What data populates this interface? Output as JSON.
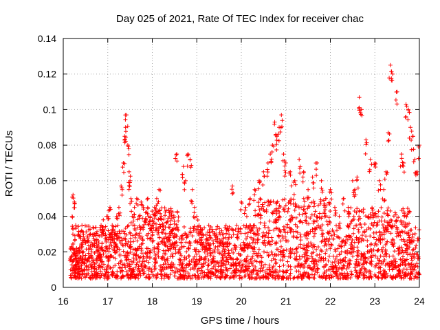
{
  "chart_data": {
    "type": "scatter",
    "title": "Day 025 of 2021, Rate Of TEC Index for receiver chac",
    "xlabel": "GPS time / hours",
    "ylabel": "ROTI / TECUs",
    "xlim": [
      16,
      24
    ],
    "ylim": [
      0,
      0.14
    ],
    "xticks": [
      "16",
      "17",
      "18",
      "19",
      "20",
      "21",
      "22",
      "23",
      "24"
    ],
    "yticks": [
      "0",
      "0.02",
      "0.04",
      "0.06",
      "0.08",
      "0.1",
      "0.12",
      "0.14"
    ],
    "grid": true,
    "marker": "plus",
    "marker_color": "#ff0000",
    "series": [
      {
        "x": [
          16.2,
          16.22,
          16.25,
          16.28,
          16.3,
          16.22,
          16.25,
          16.28,
          16.3,
          16.35,
          16.4,
          16.45,
          16.5,
          16.55,
          16.6,
          16.65,
          16.7,
          16.75,
          16.8,
          16.85,
          16.9,
          16.95,
          17.0,
          17.05,
          17.1,
          17.15,
          17.2,
          17.25,
          17.3,
          17.35,
          17.38,
          17.4,
          17.42,
          17.45,
          17.48,
          17.5,
          17.52,
          17.55,
          17.6,
          17.65,
          17.7,
          17.75,
          17.8,
          17.85,
          17.9,
          17.95,
          18.0,
          18.05,
          18.1,
          18.15,
          18.2,
          18.25,
          18.3,
          18.35,
          18.4,
          18.45,
          18.5,
          18.55,
          18.6,
          18.7,
          18.75,
          18.8,
          18.85,
          18.9,
          18.95,
          19.0,
          19.05,
          19.1,
          19.15,
          19.2,
          19.3,
          19.4,
          19.5,
          19.6,
          19.7,
          19.8,
          19.9,
          20.0,
          20.1,
          20.2,
          20.3,
          20.4,
          20.5,
          20.6,
          20.65,
          20.7,
          20.75,
          20.8,
          20.85,
          20.9,
          20.95,
          21.0,
          21.1,
          21.2,
          21.3,
          21.4,
          21.5,
          21.6,
          21.7,
          21.8,
          21.9,
          22.0,
          22.1,
          22.2,
          22.3,
          22.4,
          22.5,
          22.55,
          22.6,
          22.65,
          22.7,
          22.8,
          22.9,
          23.0,
          23.1,
          23.2,
          23.25,
          23.3,
          23.35,
          23.4,
          23.5,
          23.6,
          23.65,
          23.7,
          23.75,
          23.8,
          23.85,
          23.9,
          23.95,
          24.0
        ],
        "y": [
          0.04,
          0.052,
          0.048,
          0.035,
          0.02,
          0.015,
          0.012,
          0.018,
          0.022,
          0.016,
          0.014,
          0.02,
          0.018,
          0.015,
          0.022,
          0.017,
          0.03,
          0.025,
          0.02,
          0.035,
          0.038,
          0.03,
          0.04,
          0.045,
          0.035,
          0.03,
          0.04,
          0.045,
          0.057,
          0.07,
          0.085,
          0.09,
          0.097,
          0.08,
          0.065,
          0.06,
          0.05,
          0.04,
          0.045,
          0.05,
          0.04,
          0.048,
          0.045,
          0.042,
          0.05,
          0.04,
          0.035,
          0.045,
          0.05,
          0.055,
          0.04,
          0.035,
          0.03,
          0.028,
          0.03,
          0.025,
          0.03,
          0.075,
          0.02,
          0.068,
          0.06,
          0.075,
          0.072,
          0.055,
          0.045,
          0.04,
          0.035,
          0.03,
          0.025,
          0.025,
          0.028,
          0.03,
          0.025,
          0.03,
          0.025,
          0.057,
          0.035,
          0.048,
          0.045,
          0.05,
          0.055,
          0.06,
          0.065,
          0.07,
          0.075,
          0.08,
          0.093,
          0.085,
          0.09,
          0.097,
          0.075,
          0.07,
          0.065,
          0.06,
          0.072,
          0.065,
          0.055,
          0.062,
          0.07,
          0.06,
          0.05,
          0.055,
          0.045,
          0.04,
          0.05,
          0.045,
          0.06,
          0.055,
          0.062,
          0.107,
          0.1,
          0.083,
          0.072,
          0.07,
          0.06,
          0.055,
          0.065,
          0.087,
          0.125,
          0.12,
          0.11,
          0.075,
          0.07,
          0.103,
          0.1,
          0.09,
          0.085,
          0.072,
          0.065,
          0.08
        ]
      }
    ],
    "dense_band": {
      "x_start": 16.15,
      "x_end": 24.0,
      "baseline_low": 0.005,
      "baseline_high": 0.035
    }
  }
}
